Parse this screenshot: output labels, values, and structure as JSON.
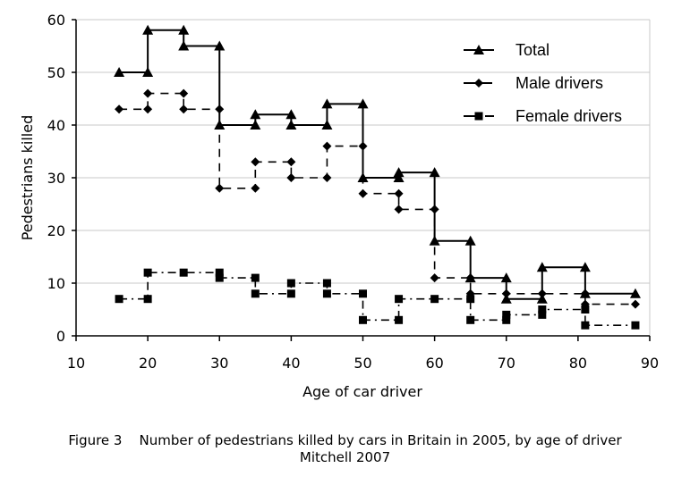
{
  "chart_data": {
    "type": "line",
    "step": true,
    "title": "",
    "xlabel": "Age of car driver",
    "ylabel": "Pedestrians killed",
    "xlim": [
      10,
      90
    ],
    "ylim": [
      0,
      60
    ],
    "xticks": [
      10,
      20,
      30,
      40,
      50,
      60,
      70,
      80,
      90
    ],
    "yticks": [
      0,
      10,
      20,
      30,
      40,
      50,
      60
    ],
    "grid": "horizontal",
    "legend_position": "top-right",
    "series": [
      {
        "name": "Total",
        "marker": "triangle",
        "line_style": "solid",
        "points": [
          [
            16,
            50
          ],
          [
            20,
            50
          ],
          [
            20,
            58
          ],
          [
            25,
            58
          ],
          [
            25,
            55
          ],
          [
            30,
            55
          ],
          [
            30,
            40
          ],
          [
            35,
            40
          ],
          [
            35,
            42
          ],
          [
            40,
            42
          ],
          [
            40,
            40
          ],
          [
            45,
            40
          ],
          [
            45,
            44
          ],
          [
            50,
            44
          ],
          [
            50,
            30
          ],
          [
            55,
            30
          ],
          [
            55,
            31
          ],
          [
            60,
            31
          ],
          [
            60,
            18
          ],
          [
            65,
            18
          ],
          [
            65,
            11
          ],
          [
            70,
            11
          ],
          [
            70,
            7
          ],
          [
            75,
            7
          ],
          [
            75,
            13
          ],
          [
            81,
            13
          ],
          [
            81,
            8
          ],
          [
            88,
            8
          ]
        ]
      },
      {
        "name": "Male drivers",
        "marker": "diamond",
        "line_style": "dashed",
        "points": [
          [
            16,
            43
          ],
          [
            20,
            43
          ],
          [
            20,
            46
          ],
          [
            25,
            46
          ],
          [
            25,
            43
          ],
          [
            30,
            43
          ],
          [
            30,
            28
          ],
          [
            35,
            28
          ],
          [
            35,
            33
          ],
          [
            40,
            33
          ],
          [
            40,
            30
          ],
          [
            45,
            30
          ],
          [
            45,
            36
          ],
          [
            50,
            36
          ],
          [
            50,
            27
          ],
          [
            55,
            27
          ],
          [
            55,
            24
          ],
          [
            60,
            24
          ],
          [
            60,
            11
          ],
          [
            65,
            11
          ],
          [
            65,
            8
          ],
          [
            70,
            8
          ],
          [
            75,
            8
          ],
          [
            81,
            8
          ],
          [
            81,
            6
          ],
          [
            88,
            6
          ]
        ]
      },
      {
        "name": "Female drivers",
        "marker": "square",
        "line_style": "dashdot",
        "points": [
          [
            16,
            7
          ],
          [
            20,
            7
          ],
          [
            20,
            12
          ],
          [
            25,
            12
          ],
          [
            30,
            12
          ],
          [
            30,
            11
          ],
          [
            35,
            11
          ],
          [
            35,
            8
          ],
          [
            40,
            8
          ],
          [
            40,
            10
          ],
          [
            45,
            10
          ],
          [
            45,
            8
          ],
          [
            50,
            8
          ],
          [
            50,
            3
          ],
          [
            55,
            3
          ],
          [
            55,
            7
          ],
          [
            60,
            7
          ],
          [
            65,
            7
          ],
          [
            65,
            3
          ],
          [
            70,
            3
          ],
          [
            70,
            4
          ],
          [
            75,
            4
          ],
          [
            75,
            5
          ],
          [
            81,
            5
          ],
          [
            81,
            2
          ],
          [
            88,
            2
          ]
        ]
      }
    ]
  },
  "caption": {
    "line1": "Figure 3    Number of pedestrians killed by cars in Britain in 2005, by age of driver",
    "line2": "Mitchell 2007"
  }
}
